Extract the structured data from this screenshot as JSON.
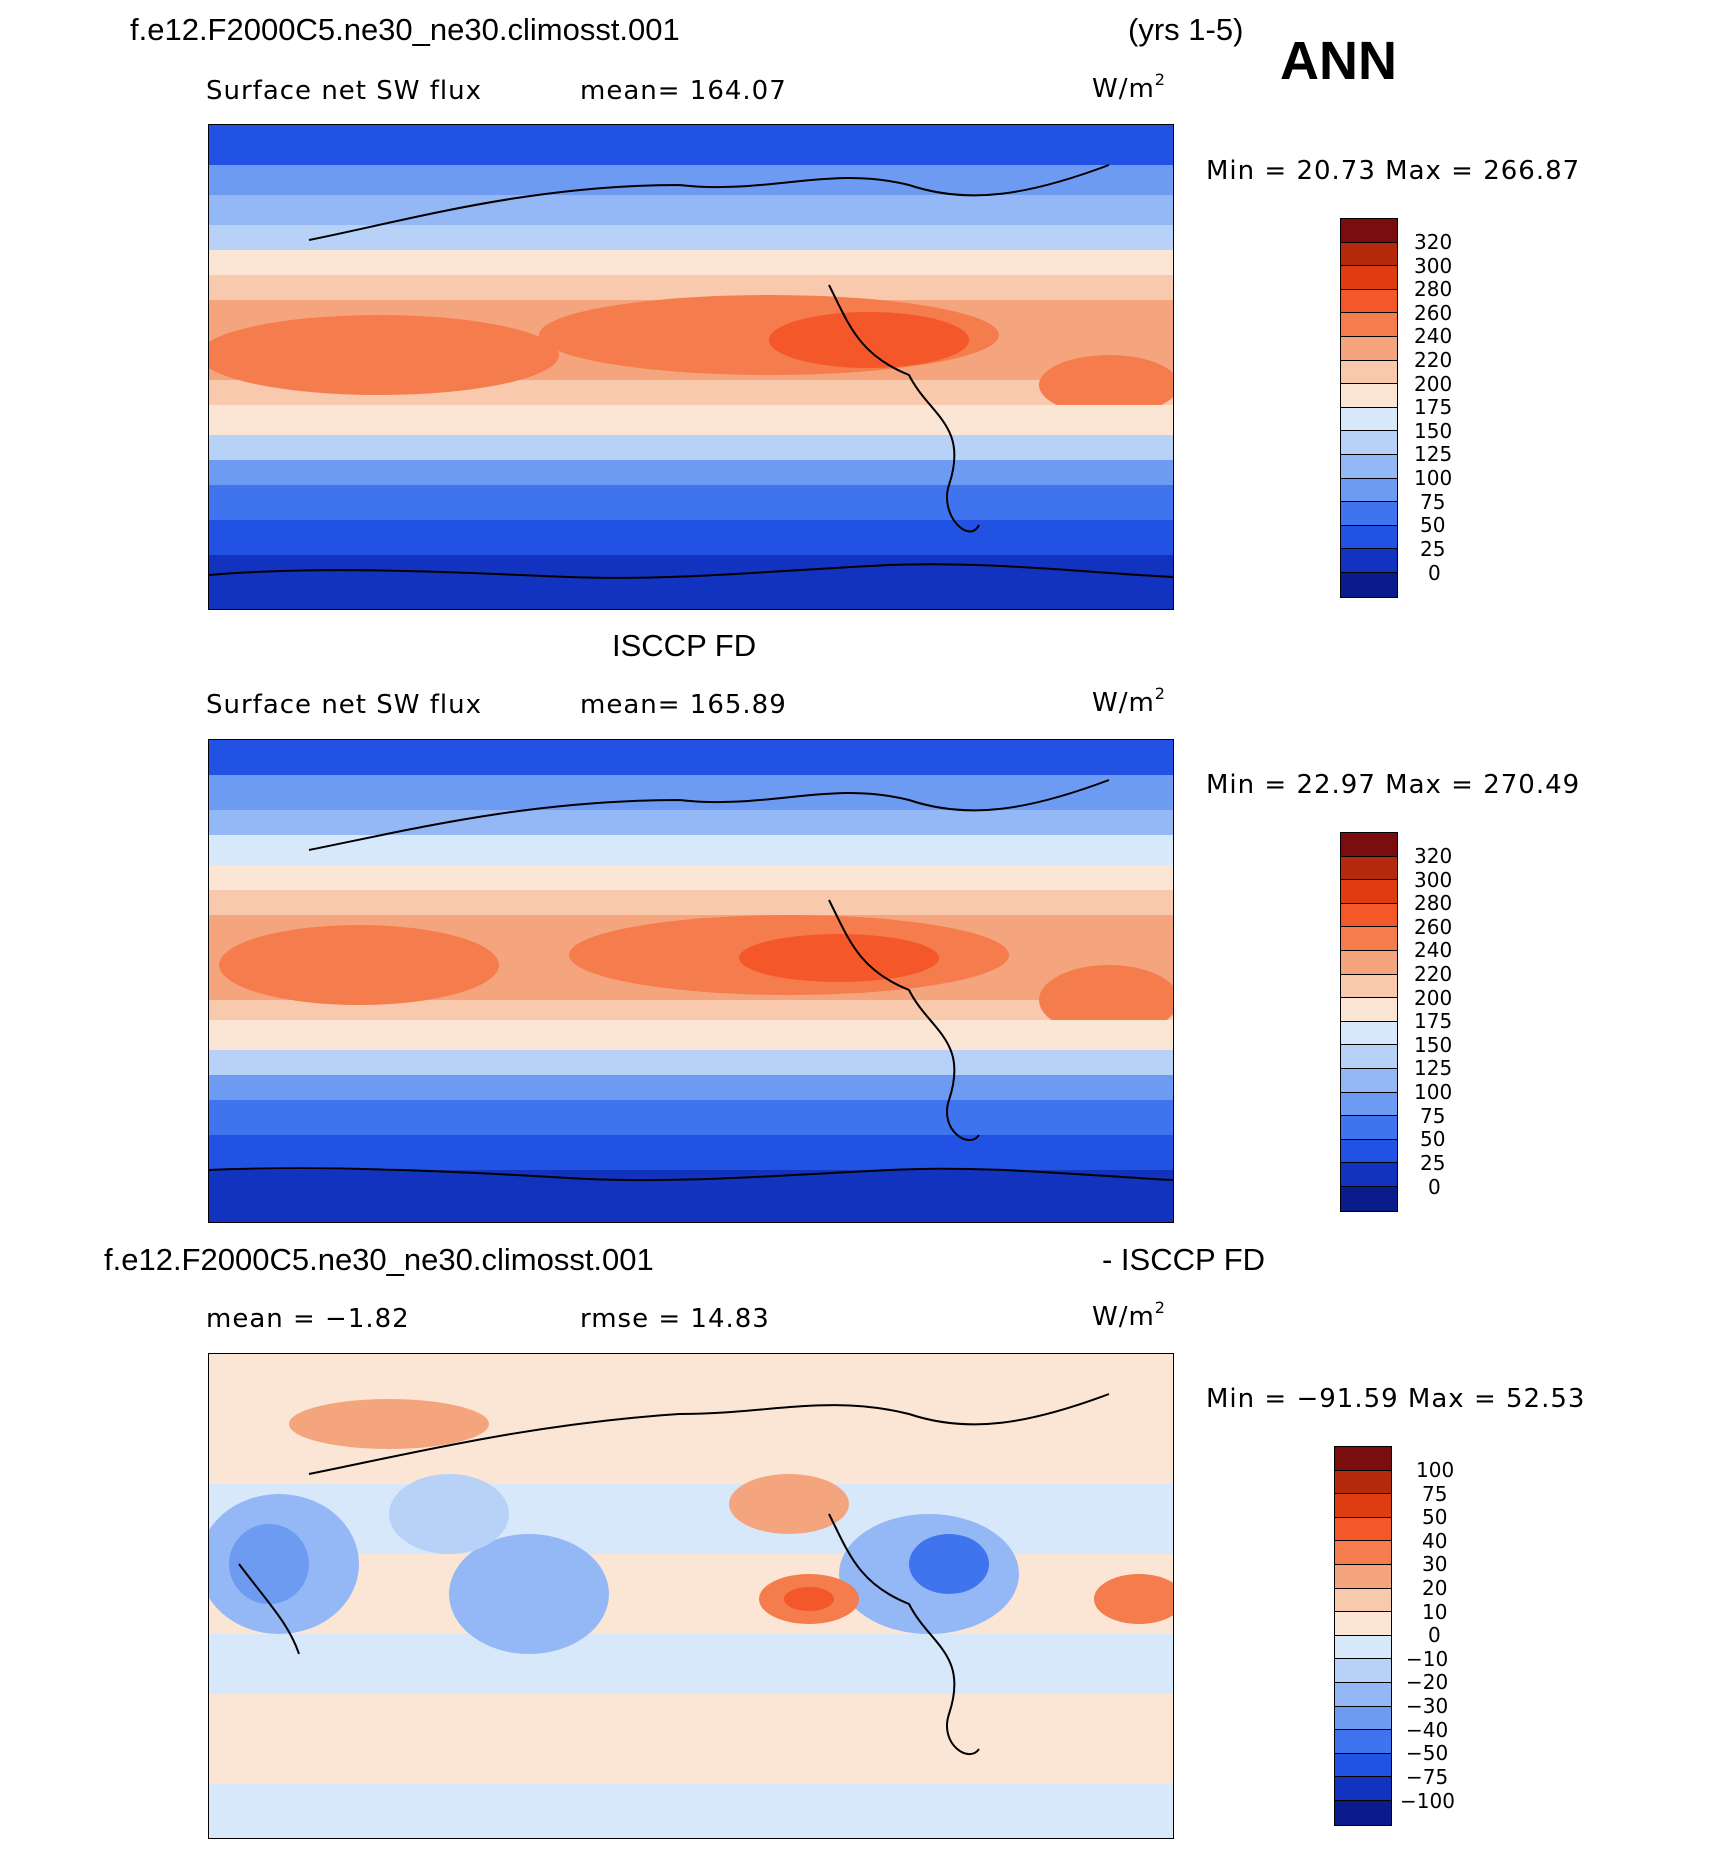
{
  "header": {
    "case_name": "f.e12.F2000C5.ne30_ne30.climosst.001",
    "years": "(yrs 1-5)",
    "season": "ANN"
  },
  "panels": [
    {
      "variable": "Surface net SW flux",
      "stat": "mean=  164.07",
      "unit": "W/m",
      "unit_sup": "2",
      "minmax": "Min  =    20.73  Max  =  266.87",
      "colorbar_labels": [
        "320",
        "300",
        "280",
        "260",
        "240",
        "220",
        "200",
        "175",
        "150",
        "125",
        "100",
        "75",
        "50",
        "25",
        "0"
      ]
    },
    {
      "title": "ISCCP FD",
      "variable": "Surface net SW flux",
      "stat": "mean=  165.89",
      "unit": "W/m",
      "unit_sup": "2",
      "minmax": "Min  =    22.97  Max  =  270.49",
      "colorbar_labels": [
        "320",
        "300",
        "280",
        "260",
        "240",
        "220",
        "200",
        "175",
        "150",
        "125",
        "100",
        "75",
        "50",
        "25",
        "0"
      ]
    },
    {
      "title_left": "f.e12.F2000C5.ne30_ne30.climosst.001",
      "title_right": "- ISCCP FD",
      "stat_left": "mean  =    −1.82",
      "stat_right": "rmse  =    14.83",
      "unit": "W/m",
      "unit_sup": "2",
      "minmax": "Min  =  −91.59  Max  =    52.53",
      "colorbar_labels": [
        "100",
        "75",
        "50",
        "40",
        "30",
        "20",
        "10",
        "0",
        "−10",
        "−20",
        "−30",
        "−40",
        "−50",
        "−75",
        "−100"
      ]
    }
  ],
  "colors": {
    "abs_scale": [
      "#7a0d0d",
      "#b52a0d",
      "#e03c12",
      "#f4582a",
      "#f57c4d",
      "#f5a57d",
      "#f8c9ad",
      "#fbe6d6",
      "#d8e8fb",
      "#b8d1f7",
      "#94b7f5",
      "#6e9bf2",
      "#3f74ee",
      "#2252e4",
      "#1233c0",
      "#0a1c8c"
    ],
    "diff_scale": [
      "#7a0d0d",
      "#b52a0d",
      "#e03c12",
      "#f4582a",
      "#f57c4d",
      "#f5a57d",
      "#f8c9ad",
      "#fbe6d6",
      "#d8e8fb",
      "#b8d1f7",
      "#94b7f5",
      "#6e9bf2",
      "#3f74ee",
      "#2252e4",
      "#1233c0",
      "#0a1c8c"
    ]
  }
}
